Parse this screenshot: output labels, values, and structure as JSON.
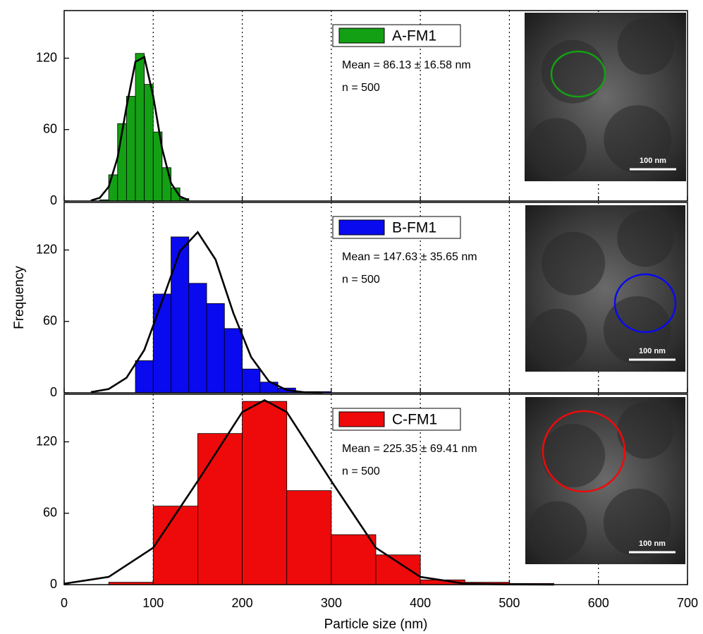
{
  "chart_data": [
    {
      "type": "histogram",
      "name": "A-FM1",
      "color": "#14a014",
      "bins": [
        40,
        50,
        60,
        70,
        80,
        90,
        100,
        110,
        120,
        130,
        140
      ],
      "values": [
        1,
        22,
        65,
        88,
        124,
        98,
        58,
        28,
        11,
        2
      ],
      "fit": {
        "x": [
          30,
          40,
          50,
          60,
          70,
          80,
          90,
          100,
          110,
          120,
          130,
          140
        ],
        "values": [
          0.4,
          2.7,
          11.9,
          36.5,
          79,
          117,
          121,
          88,
          44,
          15,
          3.8,
          0.6
        ]
      },
      "annotations": [
        "Mean = 86.13 ± 16.58 nm",
        "n = 500"
      ],
      "image_label": "100 nm",
      "xlim": [
        0,
        700
      ],
      "xticks": [
        0,
        100,
        200,
        300,
        400,
        500,
        600,
        700
      ],
      "ylim": [
        0,
        160
      ],
      "yticks": [
        0,
        60,
        120
      ],
      "grid": true
    },
    {
      "type": "histogram",
      "name": "B-FM1",
      "color": "#0a0aee",
      "bins": [
        80,
        100,
        120,
        140,
        160,
        180,
        200,
        220,
        240,
        260,
        280,
        300
      ],
      "values": [
        27,
        83,
        131,
        92,
        75,
        54,
        20,
        9,
        4,
        1,
        1
      ],
      "fit": {
        "x": [
          30,
          50,
          70,
          90,
          110,
          130,
          150,
          170,
          190,
          210,
          230,
          250,
          270,
          290
        ],
        "values": [
          0.6,
          3.2,
          12.6,
          36,
          77,
          119,
          135,
          112,
          67,
          30,
          9.6,
          2.3,
          0.4,
          0.1
        ]
      },
      "annotations": [
        "Mean = 147.63 ± 35.65 nm",
        "n = 500"
      ],
      "image_label": "100 nm",
      "ylabel": "Frequency",
      "xlim": [
        0,
        700
      ],
      "xticks": [
        0,
        100,
        200,
        300,
        400,
        500,
        600,
        700
      ],
      "ylim": [
        0,
        160
      ],
      "yticks": [
        0,
        60,
        120
      ],
      "grid": true
    },
    {
      "type": "histogram",
      "name": "C-FM1",
      "color": "#ee0a0a",
      "bins": [
        50,
        100,
        150,
        200,
        250,
        300,
        350,
        400,
        450,
        500,
        550
      ],
      "values": [
        2,
        66,
        127,
        154,
        79,
        42,
        25,
        4,
        2,
        1
      ],
      "fit": {
        "x": [
          0,
          50,
          100,
          150,
          200,
          225,
          250,
          300,
          350,
          400,
          450,
          500,
          550
        ],
        "values": [
          0.8,
          6.5,
          31,
          87,
          145,
          155,
          145,
          87,
          31,
          6.5,
          0.8,
          0.2,
          0
        ]
      },
      "annotations": [
        "Mean = 225.35 ± 69.41 nm",
        "n = 500"
      ],
      "image_label": "100 nm",
      "xlabel": "Particle size (nm)",
      "xlim": [
        0,
        700
      ],
      "xticks": [
        0,
        100,
        200,
        300,
        400,
        500,
        600,
        700
      ],
      "ylim": [
        0,
        160
      ],
      "yticks": [
        0,
        60,
        120
      ],
      "grid": true
    }
  ]
}
